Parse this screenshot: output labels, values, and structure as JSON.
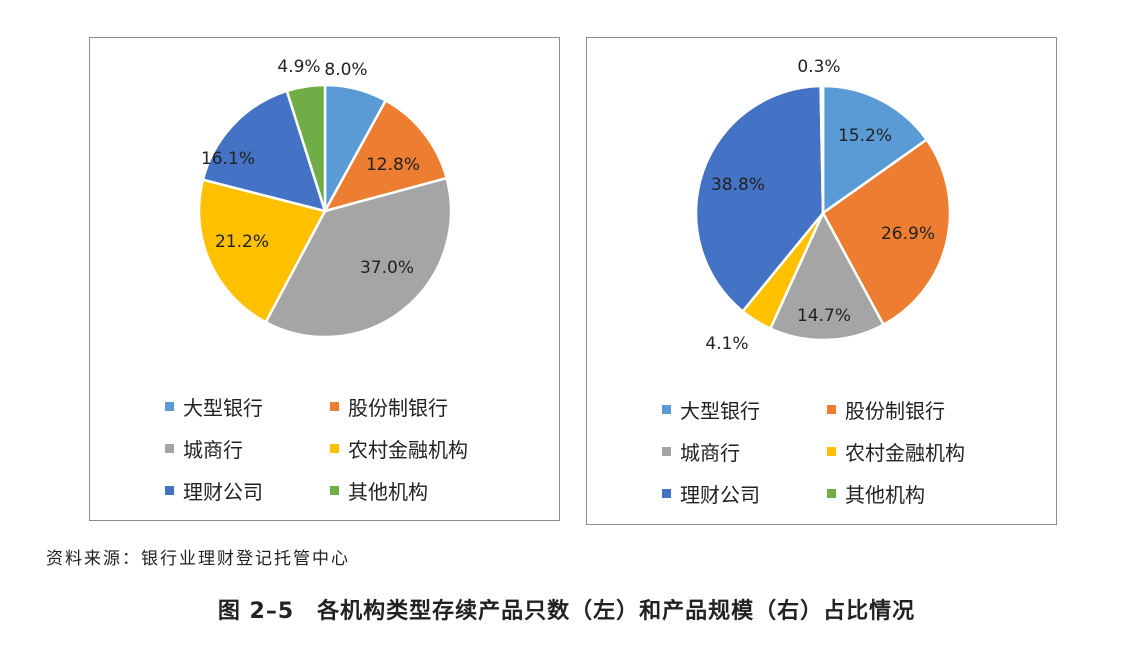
{
  "colors": {
    "大型银行": "#5b9bd5",
    "股份制银行": "#ed7d31",
    "城商行": "#a5a5a5",
    "农村金融机构": "#ffc000",
    "理财公司": "#4472c4",
    "其他机构": "#70ad47"
  },
  "legend": {
    "items": [
      "大型银行",
      "股份制银行",
      "城商行",
      "农村金融机构",
      "理财公司",
      "其他机构"
    ]
  },
  "chart_data": [
    {
      "type": "pie",
      "title": "",
      "slices": [
        {
          "category": "大型银行",
          "value": 8.0,
          "label": "8.0%"
        },
        {
          "category": "股份制银行",
          "value": 12.8,
          "label": "12.8%"
        },
        {
          "category": "城商行",
          "value": 37.0,
          "label": "37.0%"
        },
        {
          "category": "农村金融机构",
          "value": 21.2,
          "label": "21.2%"
        },
        {
          "category": "理财公司",
          "value": 16.1,
          "label": "16.1%"
        },
        {
          "category": "其他机构",
          "value": 4.9,
          "label": "4.9%"
        }
      ],
      "legend_position": "bottom"
    },
    {
      "type": "pie",
      "title": "",
      "slices": [
        {
          "category": "大型银行",
          "value": 15.2,
          "label": "15.2%"
        },
        {
          "category": "股份制银行",
          "value": 26.9,
          "label": "26.9%"
        },
        {
          "category": "城商行",
          "value": 14.7,
          "label": "14.7%"
        },
        {
          "category": "农村金融机构",
          "value": 4.1,
          "label": "4.1%"
        },
        {
          "category": "理财公司",
          "value": 38.8,
          "label": "38.8%"
        },
        {
          "category": "其他机构",
          "value": 0.3,
          "label": "0.3%"
        }
      ],
      "legend_position": "bottom"
    }
  ],
  "source": "资料来源：银行业理财登记托管中心",
  "caption": "图 2–5　各机构类型存续产品只数（左）和产品规模（右）占比情况"
}
